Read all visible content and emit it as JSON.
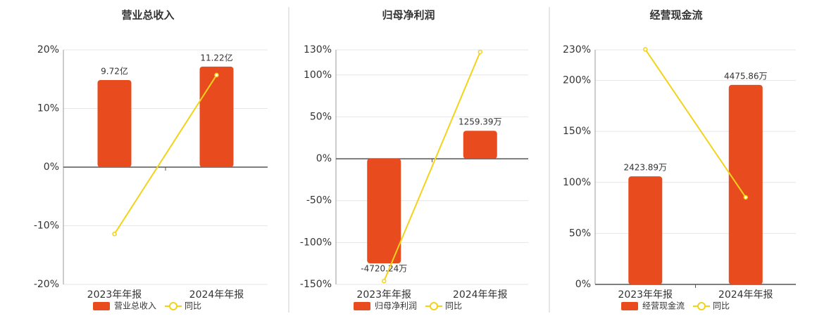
{
  "chart_data": [
    {
      "type": "bar",
      "title": "营业总收入",
      "categories": [
        "2023年年报",
        "2024年年报"
      ],
      "series": [
        {
          "name": "营业总收入",
          "color": "#e84c1e",
          "axis": "y2",
          "values": [
            9.72,
            11.22
          ],
          "value_labels": [
            "9.72亿",
            "11.22亿"
          ]
        },
        {
          "name": "同比",
          "type": "line",
          "color": "#f2d31a",
          "values": [
            -11.4,
            15.7
          ]
        }
      ],
      "ylim": [
        -20,
        20
      ],
      "yticks": [
        {
          "value": -20,
          "label": "-20%"
        },
        {
          "value": -10,
          "label": "-10%"
        },
        {
          "value": 0,
          "label": "0%"
        },
        {
          "value": 10,
          "label": "10%"
        },
        {
          "value": 20,
          "label": "20%"
        }
      ],
      "y2lim": [
        -13.09,
        13.09
      ],
      "grid": true
    },
    {
      "type": "bar",
      "title": "归母净利润",
      "categories": [
        "2023年年报",
        "2024年年报"
      ],
      "series": [
        {
          "name": "归母净利润",
          "color": "#e84c1e",
          "axis": "y2",
          "values": [
            -4720.24,
            1259.39
          ],
          "value_labels": [
            "-4720.24万",
            "1259.39万"
          ]
        },
        {
          "name": "同比",
          "type": "line",
          "color": "#f2d31a",
          "values": [
            -146,
            127.5
          ]
        }
      ],
      "ylim": [
        -150,
        130
      ],
      "yticks": [
        {
          "value": -150,
          "label": "-150%"
        },
        {
          "value": -100,
          "label": "-100%"
        },
        {
          "value": -50,
          "label": "-50%"
        },
        {
          "value": 0,
          "label": "0%"
        },
        {
          "value": 50,
          "label": "50%"
        },
        {
          "value": 100,
          "label": "100%"
        },
        {
          "value": 130,
          "label": "130%"
        }
      ],
      "y2lim": [
        -5670,
        4910
      ],
      "grid": true
    },
    {
      "type": "bar",
      "title": "经营现金流",
      "categories": [
        "2023年年报",
        "2024年年报"
      ],
      "series": [
        {
          "name": "经营现金流",
          "color": "#e84c1e",
          "axis": "y2",
          "values": [
            2423.89,
            4475.86
          ],
          "value_labels": [
            "2423.89万",
            "4475.86万"
          ]
        },
        {
          "name": "同比",
          "type": "line",
          "color": "#f2d31a",
          "values": [
            230.5,
            85.4
          ]
        }
      ],
      "ylim": [
        0,
        230
      ],
      "yticks": [
        {
          "value": 0,
          "label": "0%"
        },
        {
          "value": 50,
          "label": "50%"
        },
        {
          "value": 100,
          "label": "100%"
        },
        {
          "value": 150,
          "label": "150%"
        },
        {
          "value": 200,
          "label": "200%"
        },
        {
          "value": 230,
          "label": "230%"
        }
      ],
      "y2lim": [
        0,
        5262
      ],
      "grid": true
    }
  ]
}
